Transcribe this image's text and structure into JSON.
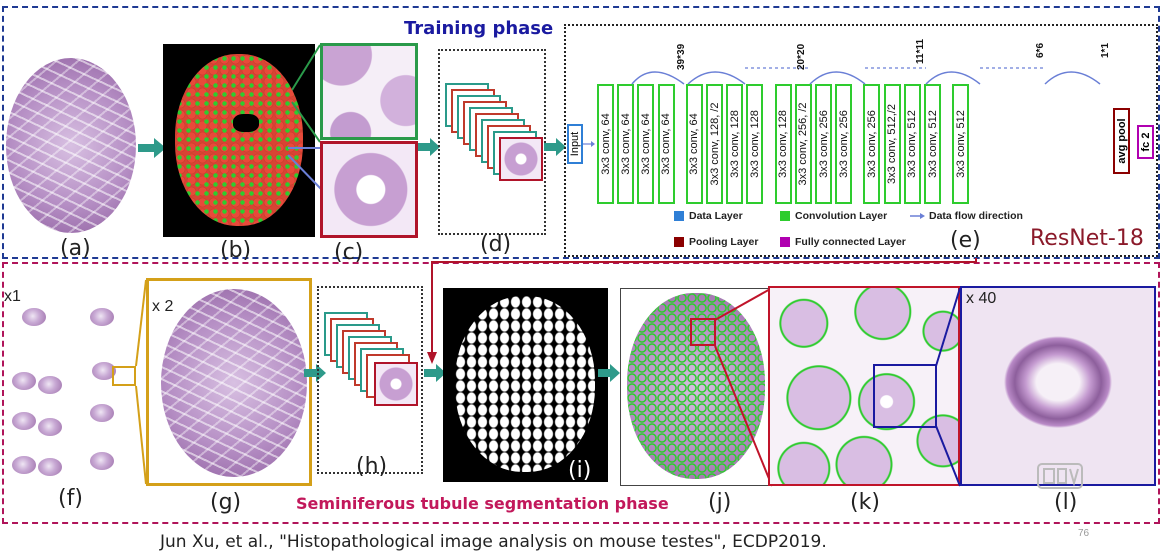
{
  "training_phase_title": "Training phase",
  "segmentation_phase_title": "Seminiferous tubule segmentation phase",
  "network_name": "ResNet-18",
  "panel_labels": {
    "a": "(a)",
    "b": "(b)",
    "c": "(c)",
    "d": "(d)",
    "e": "(e)",
    "f": "(f)",
    "g": "(g)",
    "h": "(h)",
    "i": "(i)",
    "j": "(j)",
    "k": "(k)",
    "l": "(l)"
  },
  "magnifications": {
    "f": "x1",
    "g": "x 2",
    "l": "x 40"
  },
  "network": {
    "input_label": "Input",
    "layers": [
      "3x3 conv, 64",
      "3x3 conv, 64",
      "3x3 conv, 64",
      "3x3 conv, 64",
      "3x3 conv, 64",
      "3x3 conv, 128, /2",
      "3x3 conv, 128",
      "3x3 conv, 128",
      "3x3 conv, 128",
      "3x3 conv, 256, /2",
      "3x3 conv, 256",
      "3x3 conv, 256",
      "3x3 conv, 256",
      "3x3 conv, 512,/2",
      "3x3 conv, 512",
      "3x3 conv, 512",
      "3x3 conv, 512"
    ],
    "pool_label": "avg pool",
    "fc_label": "fc 2",
    "feature_sizes": [
      "39*39",
      "20*20",
      "11*11",
      "6*6",
      "1*1"
    ]
  },
  "legend": {
    "data_layer": "Data Layer",
    "convolution_layer": "Convolution Layer",
    "data_flow": "Data flow direction",
    "pooling_layer": "Pooling Layer",
    "fully_connected": "Fully connected Layer"
  },
  "citation": "Jun Xu, et al., \"Histopathological image analysis on mouse testes\", ECDP2019.",
  "slide_number": "76",
  "colors": {
    "training_border": "#1f3a93",
    "segmentation_border": "#b0145a",
    "conv_green": "#2ecc2e",
    "pool_red": "#8b0000",
    "fc_purple": "#b000b0",
    "data_blue": "#2f7fd6",
    "arrow_teal": "#2e9a8a",
    "phase_blue": "#1a1aa0",
    "phase_magenta": "#c2185b"
  }
}
